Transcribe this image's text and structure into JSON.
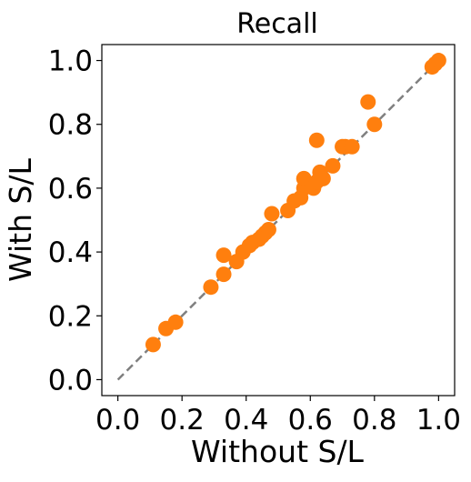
{
  "chart_data": {
    "type": "scatter",
    "title": "Recall",
    "xlabel": "Without S/L",
    "ylabel": "With S/L",
    "xlim": [
      -0.05,
      1.05
    ],
    "ylim": [
      -0.05,
      1.05
    ],
    "x_ticks": [
      0.0,
      0.2,
      0.4,
      0.6,
      0.8,
      1.0
    ],
    "y_ticks": [
      0.0,
      0.2,
      0.4,
      0.6,
      0.8,
      1.0
    ],
    "x_tick_labels": [
      "0.0",
      "0.2",
      "0.4",
      "0.6",
      "0.8",
      "1.0"
    ],
    "y_tick_labels": [
      "0.0",
      "0.2",
      "0.4",
      "0.6",
      "0.8",
      "1.0"
    ],
    "grid": false,
    "reference_line": {
      "style": "dashed",
      "color": "#7f7f7f",
      "x": [
        0.0,
        1.0
      ],
      "y": [
        0.0,
        1.0
      ]
    },
    "point_color": "#ff7f0e",
    "series": [
      {
        "x": [
          0.11,
          0.15,
          0.18,
          0.29,
          0.33,
          0.33,
          0.37,
          0.39,
          0.41,
          0.42,
          0.44,
          0.45,
          0.46,
          0.47,
          0.48,
          0.53,
          0.55,
          0.57,
          0.58,
          0.58,
          0.61,
          0.62,
          0.62,
          0.63,
          0.64,
          0.67,
          0.7,
          0.71,
          0.73,
          0.78,
          0.8,
          0.98,
          0.99,
          1.0
        ],
        "y": [
          0.11,
          0.16,
          0.18,
          0.29,
          0.33,
          0.39,
          0.37,
          0.4,
          0.42,
          0.43,
          0.44,
          0.45,
          0.46,
          0.47,
          0.52,
          0.53,
          0.56,
          0.57,
          0.6,
          0.63,
          0.6,
          0.62,
          0.75,
          0.65,
          0.63,
          0.67,
          0.73,
          0.73,
          0.73,
          0.87,
          0.8,
          0.98,
          0.99,
          1.0
        ]
      }
    ]
  }
}
